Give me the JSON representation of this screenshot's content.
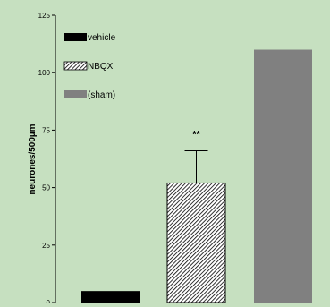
{
  "colors": {
    "background": "#c6e0c0",
    "vehicle": "#000000",
    "nbqx_hatch": "#000000",
    "sham": "#808080"
  },
  "chart_data": {
    "type": "bar",
    "title": "",
    "xlabel": "",
    "ylabel": "neurones/500µm",
    "ylim": [
      0,
      125
    ],
    "yticks": [
      0,
      25,
      50,
      75,
      100,
      125
    ],
    "categories": [
      "vehicle",
      "NBQX",
      "(sham)"
    ],
    "values": [
      5,
      52,
      110
    ],
    "error_upper": [
      0.3,
      14,
      0
    ],
    "annotations": [
      {
        "category": "NBQX",
        "text": "**"
      }
    ],
    "legend": {
      "placement": "top-left",
      "entries": [
        {
          "label": "vehicle",
          "fill": "solid-black"
        },
        {
          "label": "NBQX",
          "fill": "hatched"
        },
        {
          "label": "(sham)",
          "fill": "solid-gray"
        }
      ]
    },
    "grid": false
  }
}
